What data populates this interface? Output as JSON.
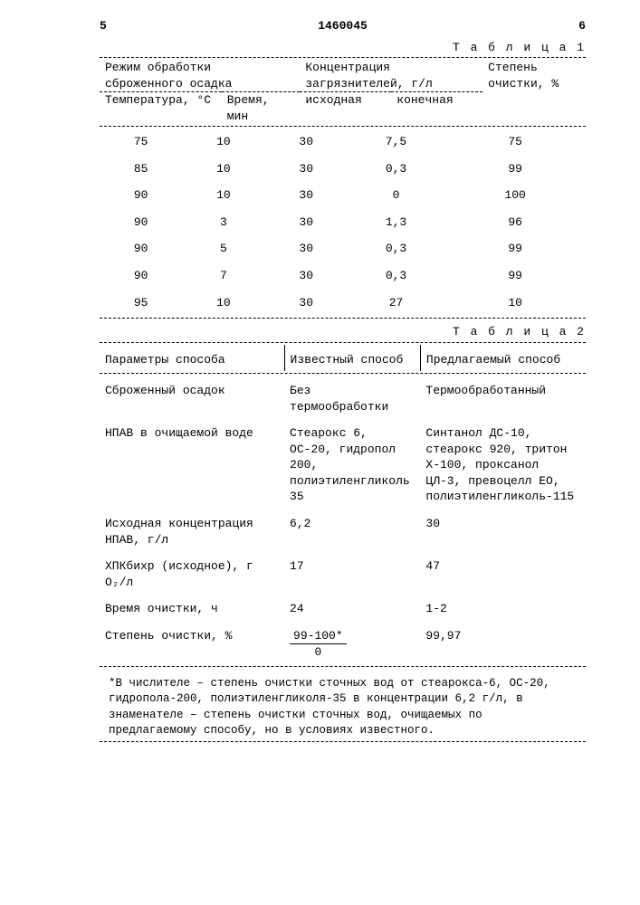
{
  "page": {
    "left_num": "5",
    "doc_num": "1460045",
    "right_num": "6"
  },
  "table1": {
    "caption": "Т а б л и ц а  1",
    "head": {
      "group1": "Режим обработки сброженного осадка",
      "group2": "Концентрация загрязнителей, г/л",
      "group3": "Степень очистки, %",
      "c1": "Температура, °С",
      "c2": "Время, мин",
      "c3": "исходная",
      "c4": "конечная"
    },
    "rows": [
      [
        "75",
        "10",
        "30",
        "7,5",
        "75"
      ],
      [
        "85",
        "10",
        "30",
        "0,3",
        "99"
      ],
      [
        "90",
        "10",
        "30",
        "0",
        "100"
      ],
      [
        "90",
        "3",
        "30",
        "1,3",
        "96"
      ],
      [
        "90",
        "5",
        "30",
        "0,3",
        "99"
      ],
      [
        "90",
        "7",
        "30",
        "0,3",
        "99"
      ],
      [
        "95",
        "10",
        "30",
        "27",
        "10"
      ]
    ]
  },
  "table2": {
    "caption": "Т а б л и ц а  2",
    "head": {
      "c0": "Параметры способа",
      "c1": "Известный способ",
      "c2": "Предлагаемый способ"
    },
    "rows": [
      {
        "p": "Сброженный осадок",
        "a": "Без термообработки",
        "b": "Термообработанный"
      },
      {
        "p": "НПАВ в очищаемой воде",
        "a": "Стеарокс 6, ОС-20, гидропол 200, полиэтиленгликоль 35",
        "b": "Синтанол ДС-10, стеарокс 920, тритон Х-100, проксанол ЦЛ-3, превоцелл ЕО, полиэтиленгликоль-115"
      },
      {
        "p": "Исходная концентрация НПАВ, г/л",
        "a": "6,2",
        "b": "30"
      },
      {
        "p": "ХПКбихр (исходное), г О₂/л",
        "a": "17",
        "b": "47"
      },
      {
        "p": "Время очистки, ч",
        "a": "24",
        "b": "1-2"
      },
      {
        "p": "Степень очистки, %",
        "frac_n": "99-100*",
        "frac_d": "0",
        "b": "99,97"
      }
    ]
  },
  "footnote": "*В числителе – степень очистки сточных вод от стеарокса-6, ОС-20, гидропола-200, полиэтиленгликоля-35 в концентрации 6,2 г/л, в знаменателе – степень очистки сточных вод, очищаемых по предлагаемому способу, но в условиях известного."
}
